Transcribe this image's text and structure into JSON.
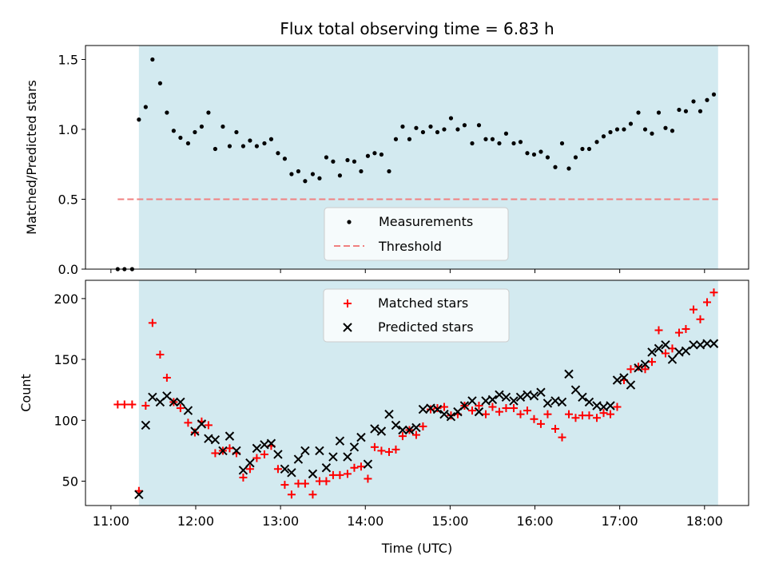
{
  "chart_data": [
    {
      "type": "scatter",
      "title": "Flux total observing time = 6.83 h",
      "xlabel": "",
      "ylabel": "Matched/Predicted stars",
      "ylim": [
        0,
        1.6
      ],
      "yticks": [
        0.0,
        0.5,
        1.0,
        1.5
      ],
      "ytick_labels": [
        "0.0",
        "0.5",
        "1.0",
        "1.5"
      ],
      "xlim_hours": [
        10.7,
        18.52
      ],
      "shaded_span_hours": [
        11.33,
        18.16
      ],
      "shade_color": "#d3eaf0",
      "threshold": {
        "name": "Threshold",
        "value": 0.5,
        "x_start": 11.08,
        "x_end": 18.16,
        "color": "#f08080"
      },
      "measurements": {
        "name": "Measurements",
        "color": "#000000",
        "x": [
          11.08,
          11.16,
          11.25,
          11.33,
          11.41,
          11.49,
          11.58,
          11.66,
          11.74,
          11.82,
          11.91,
          11.99,
          12.07,
          12.15,
          12.23,
          12.32,
          12.4,
          12.48,
          12.56,
          12.64,
          12.72,
          12.81,
          12.89,
          12.97,
          13.05,
          13.13,
          13.21,
          13.29,
          13.38,
          13.46,
          13.54,
          13.62,
          13.7,
          13.79,
          13.87,
          13.95,
          14.03,
          14.11,
          14.19,
          14.28,
          14.36,
          14.44,
          14.52,
          14.6,
          14.68,
          14.77,
          14.85,
          14.93,
          15.01,
          15.09,
          15.17,
          15.26,
          15.34,
          15.42,
          15.5,
          15.58,
          15.66,
          15.75,
          15.83,
          15.91,
          15.99,
          16.07,
          16.15,
          16.24,
          16.32,
          16.4,
          16.48,
          16.56,
          16.64,
          16.73,
          16.81,
          16.89,
          16.97,
          17.05,
          17.13,
          17.22,
          17.3,
          17.38,
          17.46,
          17.54,
          17.62,
          17.7,
          17.78,
          17.87,
          17.95,
          18.03,
          18.11
        ],
        "y": [
          0.0,
          0.0,
          0.0,
          1.07,
          1.16,
          1.5,
          1.33,
          1.12,
          0.99,
          0.94,
          0.9,
          0.98,
          1.02,
          1.12,
          0.86,
          1.02,
          0.88,
          0.98,
          0.88,
          0.92,
          0.88,
          0.9,
          0.93,
          0.83,
          0.79,
          0.68,
          0.7,
          0.63,
          0.68,
          0.65,
          0.8,
          0.77,
          0.67,
          0.78,
          0.77,
          0.7,
          0.81,
          0.83,
          0.82,
          0.7,
          0.93,
          1.02,
          0.93,
          1.01,
          0.98,
          1.02,
          0.98,
          1.0,
          1.08,
          1.0,
          1.03,
          0.9,
          1.03,
          0.93,
          0.93,
          0.9,
          0.97,
          0.9,
          0.91,
          0.83,
          0.82,
          0.84,
          0.8,
          0.73,
          0.9,
          0.72,
          0.8,
          0.86,
          0.86,
          0.91,
          0.95,
          0.98,
          1.0,
          1.0,
          1.04,
          1.12,
          1.0,
          0.97,
          1.12,
          1.01,
          0.99,
          1.14,
          1.13,
          1.2,
          1.13,
          1.21,
          1.25
        ]
      },
      "legend": {
        "location": "lower center",
        "entries": [
          "Measurements",
          "Threshold"
        ]
      }
    },
    {
      "type": "scatter",
      "title": "",
      "xlabel": "Time (UTC)",
      "ylabel": "Count",
      "ylim": [
        30,
        215
      ],
      "yticks": [
        50,
        100,
        150,
        200
      ],
      "ytick_labels": [
        "50",
        "100",
        "150",
        "200"
      ],
      "xticks_hours": [
        11,
        12,
        13,
        14,
        15,
        16,
        17,
        18
      ],
      "xtick_labels": [
        "11:00",
        "12:00",
        "13:00",
        "14:00",
        "15:00",
        "16:00",
        "17:00",
        "18:00"
      ],
      "xlim_hours": [
        10.7,
        18.52
      ],
      "shaded_span_hours": [
        11.33,
        18.16
      ],
      "series": [
        {
          "name": "Matched stars",
          "marker": "+",
          "color": "#ff0000",
          "x": [
            11.08,
            11.16,
            11.25,
            11.33,
            11.41,
            11.49,
            11.58,
            11.66,
            11.74,
            11.82,
            11.91,
            11.99,
            12.07,
            12.15,
            12.23,
            12.32,
            12.4,
            12.48,
            12.56,
            12.64,
            12.72,
            12.81,
            12.89,
            12.97,
            13.05,
            13.13,
            13.21,
            13.29,
            13.38,
            13.46,
            13.54,
            13.62,
            13.7,
            13.79,
            13.87,
            13.95,
            14.03,
            14.11,
            14.19,
            14.28,
            14.36,
            14.44,
            14.52,
            14.6,
            14.68,
            14.77,
            14.85,
            14.93,
            15.01,
            15.09,
            15.17,
            15.26,
            15.34,
            15.42,
            15.5,
            15.58,
            15.66,
            15.75,
            15.83,
            15.91,
            15.99,
            16.07,
            16.15,
            16.24,
            16.32,
            16.4,
            16.48,
            16.56,
            16.64,
            16.73,
            16.81,
            16.89,
            16.97,
            17.05,
            17.13,
            17.22,
            17.3,
            17.38,
            17.46,
            17.54,
            17.62,
            17.7,
            17.78,
            17.87,
            17.95,
            18.03,
            18.11
          ],
          "y": [
            113,
            113,
            113,
            42,
            112,
            180,
            154,
            135,
            115,
            110,
            98,
            90,
            99,
            96,
            73,
            75,
            77,
            73,
            53,
            60,
            69,
            72,
            79,
            60,
            47,
            39,
            48,
            48,
            39,
            50,
            50,
            55,
            55,
            56,
            61,
            62,
            52,
            78,
            75,
            74,
            76,
            87,
            92,
            88,
            95,
            109,
            110,
            111,
            104,
            105,
            112,
            108,
            112,
            105,
            111,
            107,
            110,
            110,
            105,
            108,
            101,
            97,
            105,
            93,
            86,
            105,
            102,
            104,
            104,
            102,
            106,
            105,
            111,
            133,
            142,
            144,
            142,
            148,
            174,
            155,
            159,
            172,
            175,
            191,
            183,
            197,
            205
          ]
        },
        {
          "name": "Predicted stars",
          "marker": "x",
          "color": "#000000",
          "x": [
            11.33,
            11.41,
            11.49,
            11.58,
            11.66,
            11.74,
            11.82,
            11.91,
            11.99,
            12.07,
            12.15,
            12.23,
            12.32,
            12.4,
            12.48,
            12.56,
            12.64,
            12.72,
            12.81,
            12.89,
            12.97,
            13.05,
            13.13,
            13.21,
            13.29,
            13.38,
            13.46,
            13.54,
            13.62,
            13.7,
            13.79,
            13.87,
            13.95,
            14.03,
            14.11,
            14.19,
            14.28,
            14.36,
            14.44,
            14.52,
            14.6,
            14.68,
            14.77,
            14.85,
            14.93,
            15.01,
            15.09,
            15.17,
            15.26,
            15.34,
            15.42,
            15.5,
            15.58,
            15.66,
            15.75,
            15.83,
            15.91,
            15.99,
            16.07,
            16.15,
            16.24,
            16.32,
            16.4,
            16.48,
            16.56,
            16.64,
            16.73,
            16.81,
            16.89,
            16.97,
            17.05,
            17.13,
            17.22,
            17.3,
            17.38,
            17.46,
            17.54,
            17.62,
            17.7,
            17.78,
            17.87,
            17.95,
            18.03,
            18.11
          ],
          "y": [
            39,
            96,
            119,
            115,
            120,
            115,
            115,
            108,
            91,
            97,
            85,
            84,
            75,
            87,
            75,
            59,
            65,
            77,
            80,
            81,
            72,
            60,
            57,
            68,
            75,
            56,
            75,
            61,
            70,
            83,
            70,
            78,
            86,
            64,
            93,
            91,
            105,
            96,
            92,
            92,
            94,
            109,
            110,
            109,
            105,
            103,
            107,
            112,
            116,
            107,
            116,
            117,
            121,
            119,
            116,
            119,
            121,
            120,
            123,
            114,
            116,
            115,
            138,
            125,
            119,
            115,
            112,
            111,
            112,
            133,
            135,
            129,
            143,
            146,
            156,
            159,
            162,
            150,
            156,
            157,
            162,
            162,
            163,
            163
          ]
        }
      ],
      "legend": {
        "location": "upper center",
        "entries": [
          "Matched stars",
          "Predicted stars"
        ]
      }
    }
  ]
}
